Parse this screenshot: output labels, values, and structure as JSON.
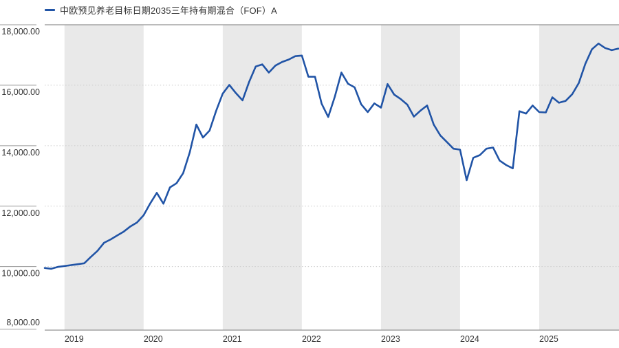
{
  "legend": {
    "series_label": "中欧预见养老目标日期2035三年持有期混合（FOF）A",
    "marker_color": "#2154a6"
  },
  "colors": {
    "line": "#2154a6",
    "year_band_gray": "#e9e9e9",
    "grid_dotted": "#cccccc",
    "axis_border": "#777777",
    "tick_stub": "#999999",
    "label_text": "#333333",
    "background": "#ffffff"
  },
  "chart_data": {
    "type": "line",
    "title": "",
    "legend_position": "top-left",
    "grid": "dotted-horizontal",
    "x_band_style": "alternating-year-bands, first year band (2019) gray",
    "x_sampling": "monthly points, starts ~3 months before first year label",
    "x_tick_labels": [
      "2019",
      "2020",
      "2021",
      "2022",
      "2023",
      "2024",
      "2025"
    ],
    "y_axis": {
      "tick_labels": [
        "18,000.00",
        "16,000.00",
        "14,000.00",
        "12,000.00",
        "10,000.00",
        "8,000.00"
      ],
      "tick_values": [
        18000,
        16000,
        14000,
        12000,
        10000,
        8000
      ]
    },
    "ylim": [
      7900,
      18000
    ],
    "series": [
      {
        "name": "中欧预见养老目标日期2035三年持有期混合（FOF）A",
        "color": "#2154a6",
        "values": [
          9955,
          9930,
          9990,
          10020,
          10050,
          10080,
          10110,
          10320,
          10520,
          10790,
          10900,
          11030,
          11160,
          11330,
          11460,
          11700,
          12090,
          12440,
          12080,
          12620,
          12760,
          13090,
          13780,
          14700,
          14270,
          14500,
          15150,
          15720,
          16010,
          15740,
          15500,
          16110,
          16620,
          16690,
          16420,
          16650,
          16770,
          16850,
          16960,
          16980,
          16280,
          16280,
          15390,
          14950,
          15620,
          16420,
          16050,
          15930,
          15370,
          15110,
          15400,
          15260,
          16040,
          15690,
          15540,
          15360,
          14960,
          15160,
          15330,
          14700,
          14340,
          14120,
          13900,
          13870,
          12860,
          13600,
          13690,
          13900,
          13940,
          13510,
          13360,
          13250,
          15140,
          15060,
          15330,
          15110,
          15100,
          15600,
          15420,
          15480,
          15700,
          16070,
          16710,
          17190,
          17380,
          17230,
          17160,
          17210
        ]
      }
    ]
  }
}
